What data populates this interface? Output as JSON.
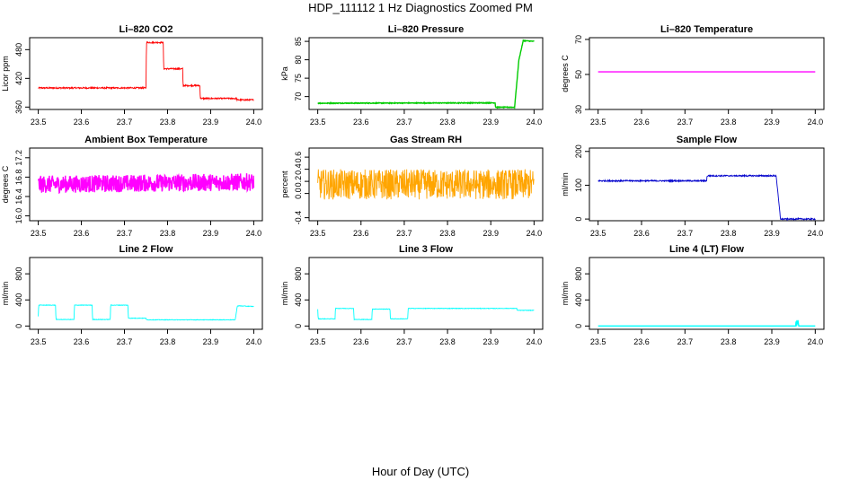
{
  "title": "HDP_111112  1 Hz Diagnostics Zoomed PM",
  "xlabel": "Hour of Day (UTC)",
  "chart_data": [
    {
      "type": "line",
      "title": "Li–820 CO2",
      "ylabel": "Licor ppm",
      "color": "#ff0000",
      "xlim": [
        23.5,
        24.0
      ],
      "xticks": [
        23.5,
        23.6,
        23.7,
        23.8,
        23.9,
        24.0
      ],
      "ylim": [
        355,
        505
      ],
      "yticks": [
        360,
        420,
        480
      ],
      "noise": 1.5,
      "series": [
        {
          "name": "CO2",
          "x": [
            23.5,
            23.75,
            23.751,
            23.79,
            23.791,
            23.835,
            23.836,
            23.875,
            23.876,
            23.96,
            23.961,
            24.0
          ],
          "values": [
            400,
            400,
            495,
            495,
            440,
            440,
            405,
            405,
            378,
            378,
            375,
            375
          ]
        }
      ]
    },
    {
      "type": "line",
      "title": "Li–820 Pressure",
      "ylabel": "kPa",
      "color": "#00cc00",
      "xlim": [
        23.5,
        24.0
      ],
      "xticks": [
        23.5,
        23.6,
        23.7,
        23.8,
        23.9,
        24.0
      ],
      "ylim": [
        66.5,
        86
      ],
      "yticks": [
        70,
        75,
        80,
        85
      ],
      "noise": 0.1,
      "series": [
        {
          "name": "Pressure",
          "x": [
            23.5,
            23.91,
            23.911,
            23.955,
            23.965,
            23.975,
            24.0
          ],
          "values": [
            68.2,
            68.3,
            67.1,
            67.1,
            80,
            85.2,
            85.0
          ]
        }
      ]
    },
    {
      "type": "line",
      "title": "Li–820 Temperature",
      "ylabel": "degrees C",
      "color": "#ff00ff",
      "xlim": [
        23.5,
        24.0
      ],
      "xticks": [
        23.5,
        23.6,
        23.7,
        23.8,
        23.9,
        24.0
      ],
      "ylim": [
        30,
        71
      ],
      "yticks": [
        30,
        50,
        70
      ],
      "noise": 0,
      "series": [
        {
          "name": "Temperature",
          "x": [
            23.5,
            24.0
          ],
          "values": [
            51.5,
            51.5
          ]
        }
      ]
    },
    {
      "type": "line",
      "title": "Ambient Box Temperature",
      "ylabel": "degrees C",
      "color": "#ff00ff",
      "xlim": [
        23.5,
        24.0
      ],
      "xticks": [
        23.5,
        23.6,
        23.7,
        23.8,
        23.9,
        24.0
      ],
      "ylim": [
        15.9,
        17.4
      ],
      "yticks": [
        16.0,
        16.4,
        16.8,
        17.2
      ],
      "noise": 0.18,
      "series": [
        {
          "name": "Ambient Temp",
          "x": [
            23.5,
            24.0
          ],
          "values": [
            16.65,
            16.7
          ]
        }
      ]
    },
    {
      "type": "line",
      "title": "Gas Stream RH",
      "ylabel": "percent",
      "color": "#ffa500",
      "xlim": [
        23.5,
        24.0
      ],
      "xticks": [
        23.5,
        23.6,
        23.7,
        23.8,
        23.9,
        24.0
      ],
      "ylim": [
        -0.45,
        0.75
      ],
      "yticks": [
        -0.4,
        0.0,
        0.2,
        0.4,
        0.6
      ],
      "noise": 0.25,
      "series": [
        {
          "name": "RH",
          "x": [
            23.5,
            24.0
          ],
          "values": [
            0.15,
            0.15
          ]
        }
      ]
    },
    {
      "type": "line",
      "title": "Sample Flow",
      "ylabel": "ml/min",
      "color": "#0000cc",
      "xlim": [
        23.5,
        24.0
      ],
      "xticks": [
        23.5,
        23.6,
        23.7,
        23.8,
        23.9,
        24.0
      ],
      "ylim": [
        -5,
        210
      ],
      "yticks": [
        0,
        100,
        200
      ],
      "noise": 2,
      "series": [
        {
          "name": "Sample Flow",
          "x": [
            23.5,
            23.75,
            23.751,
            23.91,
            23.92,
            24.0
          ],
          "values": [
            113,
            113,
            128,
            128,
            0,
            0
          ]
        }
      ]
    },
    {
      "type": "line",
      "title": "Line 2 Flow",
      "ylabel": "ml/min",
      "color": "#00ffff",
      "xlim": [
        23.5,
        24.0
      ],
      "xticks": [
        23.5,
        23.6,
        23.7,
        23.8,
        23.9,
        24.0
      ],
      "ylim": [
        -50,
        1050
      ],
      "yticks": [
        0,
        400,
        800
      ],
      "noise": 4,
      "series": [
        {
          "name": "Line 2",
          "x": [
            23.5,
            23.501,
            23.54,
            23.541,
            23.583,
            23.584,
            23.625,
            23.626,
            23.667,
            23.668,
            23.708,
            23.709,
            23.75,
            23.751,
            23.957,
            23.962,
            24.0
          ],
          "values": [
            150,
            320,
            320,
            100,
            100,
            320,
            320,
            100,
            100,
            320,
            320,
            120,
            120,
            95,
            95,
            310,
            300
          ]
        }
      ]
    },
    {
      "type": "line",
      "title": "Line 3 Flow",
      "ylabel": "ml/min",
      "color": "#00ffff",
      "xlim": [
        23.5,
        24.0
      ],
      "xticks": [
        23.5,
        23.6,
        23.7,
        23.8,
        23.9,
        24.0
      ],
      "ylim": [
        -50,
        1050
      ],
      "yticks": [
        0,
        400,
        800
      ],
      "noise": 4,
      "series": [
        {
          "name": "Line 3",
          "x": [
            23.5,
            23.501,
            23.54,
            23.541,
            23.583,
            23.584,
            23.625,
            23.626,
            23.667,
            23.668,
            23.708,
            23.709,
            23.96,
            23.961,
            24.0
          ],
          "values": [
            260,
            110,
            110,
            270,
            270,
            100,
            100,
            260,
            260,
            110,
            110,
            270,
            270,
            240,
            240
          ]
        }
      ]
    },
    {
      "type": "line",
      "title": "Line 4 (LT) Flow",
      "ylabel": "ml/min",
      "color": "#00ffff",
      "xlim": [
        23.5,
        24.0
      ],
      "xticks": [
        23.5,
        23.6,
        23.7,
        23.8,
        23.9,
        24.0
      ],
      "ylim": [
        -50,
        1050
      ],
      "yticks": [
        0,
        400,
        800
      ],
      "noise": 0,
      "series": [
        {
          "name": "Line 4",
          "x": [
            23.5,
            23.955,
            23.956,
            23.958,
            23.96,
            23.962,
            24.0
          ],
          "values": [
            0,
            0,
            80,
            20,
            90,
            0,
            0
          ]
        }
      ]
    }
  ]
}
